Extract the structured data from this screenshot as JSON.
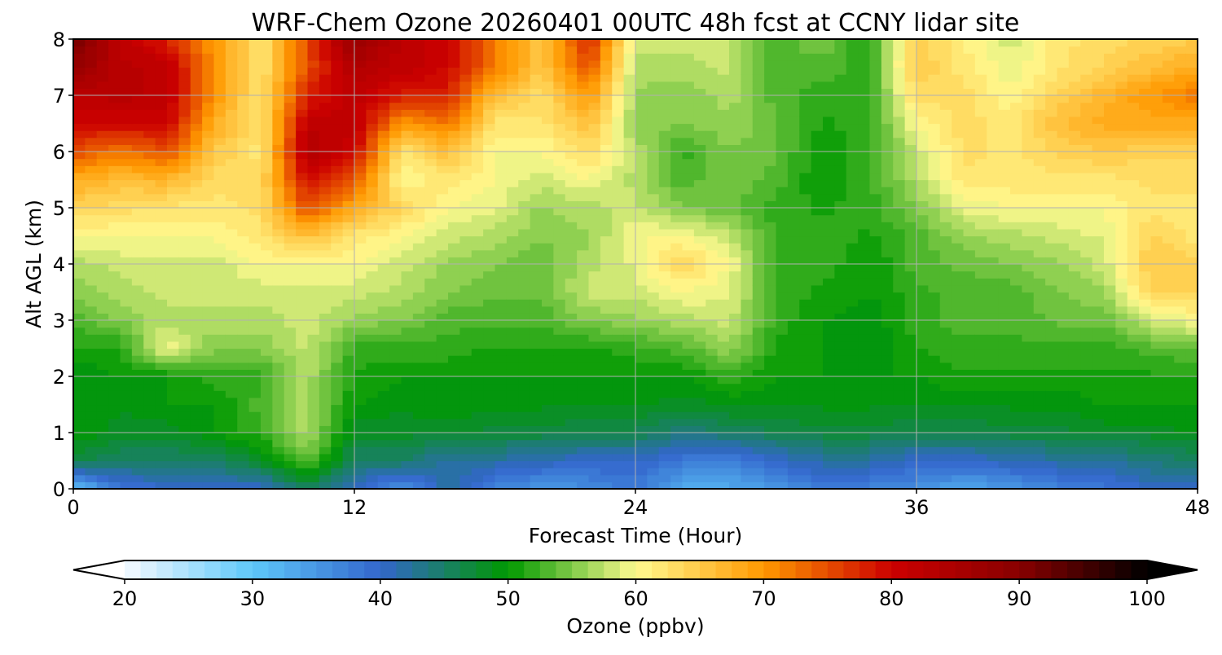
{
  "chart_data": {
    "type": "heatmap",
    "title": "WRF-Chem Ozone  20260401 00UTC 48h fcst at CCNY lidar site",
    "xlabel": "Forecast Time (Hour)",
    "ylabel": "Alt AGL (km)",
    "xlim": [
      0,
      48
    ],
    "ylim": [
      0,
      8
    ],
    "xticks": [
      "0",
      "12",
      "24",
      "36",
      "48"
    ],
    "yticks": [
      "0",
      "1",
      "2",
      "3",
      "4",
      "5",
      "6",
      "7",
      "8"
    ],
    "grid": true,
    "x_hours": [
      0,
      2,
      4,
      6,
      8,
      10,
      12,
      14,
      16,
      18,
      20,
      22,
      24,
      26,
      28,
      30,
      32,
      34,
      36,
      38,
      40,
      42,
      44,
      46,
      48
    ],
    "y_km": [
      0,
      0.5,
      1,
      1.5,
      2,
      2.5,
      3,
      3.5,
      4,
      4.5,
      5,
      5.5,
      6,
      6.5,
      7,
      7.5,
      8
    ],
    "values_by_hour": [
      [
        30,
        47,
        50,
        50,
        49,
        51,
        53,
        55,
        57,
        60,
        64,
        68,
        75,
        80,
        82,
        88,
        92
      ],
      [
        38,
        45,
        48,
        49,
        50,
        51,
        55,
        57,
        58,
        60,
        63,
        66,
        72,
        80,
        83,
        83,
        82
      ],
      [
        40,
        45,
        48,
        50,
        50,
        60,
        57,
        58,
        58,
        60,
        62,
        67,
        75,
        80,
        82,
        82,
        78
      ],
      [
        40,
        45,
        50,
        50,
        52,
        55,
        57,
        58,
        58,
        60,
        62,
        63,
        65,
        68,
        70,
        70,
        70
      ],
      [
        40,
        48,
        52,
        53,
        52,
        55,
        57,
        58,
        60,
        62,
        63,
        63,
        62,
        62,
        62,
        62,
        62
      ],
      [
        45,
        54,
        57,
        57,
        57,
        58,
        58,
        58,
        60,
        66,
        75,
        80,
        84,
        82,
        78,
        75,
        75
      ],
      [
        40,
        45,
        48,
        50,
        51,
        52,
        56,
        58,
        60,
        62,
        68,
        75,
        80,
        82,
        82,
        84,
        88
      ],
      [
        35,
        45,
        48,
        49,
        50,
        52,
        55,
        57,
        58,
        60,
        64,
        60,
        62,
        70,
        78,
        82,
        82
      ],
      [
        42,
        42,
        48,
        50,
        50,
        52,
        53,
        55,
        56,
        58,
        60,
        62,
        66,
        72,
        78,
        80,
        80
      ],
      [
        37,
        42,
        47,
        49,
        50,
        51,
        53,
        54,
        55,
        57,
        59,
        60,
        60,
        62,
        66,
        72,
        72
      ],
      [
        35,
        41,
        47,
        49,
        50,
        51,
        53,
        54,
        54,
        55,
        56,
        58,
        60,
        62,
        63,
        65,
        65
      ],
      [
        36,
        40,
        46,
        49,
        50,
        51,
        55,
        58,
        57,
        56,
        57,
        60,
        63,
        66,
        70,
        75,
        78
      ],
      [
        38,
        40,
        46,
        49,
        50,
        52,
        56,
        58,
        59,
        60,
        58,
        57,
        57,
        56,
        56,
        57,
        58
      ],
      [
        33,
        38,
        44,
        48,
        50,
        53,
        57,
        60,
        64,
        60,
        55,
        53,
        52,
        55,
        55,
        57,
        58
      ],
      [
        33,
        37,
        45,
        49,
        52,
        56,
        58,
        59,
        60,
        58,
        54,
        55,
        55,
        56,
        57,
        58,
        58
      ],
      [
        35,
        40,
        46,
        49,
        50,
        51,
        52,
        52,
        52,
        52,
        52,
        53,
        54,
        54,
        53,
        53,
        53
      ],
      [
        38,
        42,
        47,
        49,
        50,
        50,
        50,
        51,
        52,
        52,
        51,
        50,
        50,
        51,
        52,
        53,
        55
      ],
      [
        37,
        42,
        47,
        49,
        50,
        49,
        49,
        50,
        50,
        51,
        52,
        52,
        52,
        52,
        52,
        52,
        51
      ],
      [
        36,
        40,
        46,
        49,
        50,
        51,
        52,
        52,
        53,
        53,
        55,
        57,
        58,
        60,
        63,
        65,
        65
      ],
      [
        33,
        40,
        46,
        49,
        51,
        52,
        53,
        53,
        54,
        56,
        59,
        62,
        63,
        63,
        63,
        62,
        61
      ],
      [
        35,
        41,
        47,
        49,
        51,
        52,
        53,
        53,
        55,
        57,
        60,
        62,
        62,
        62,
        60,
        59,
        58
      ],
      [
        37,
        42,
        47,
        49,
        51,
        52,
        54,
        55,
        56,
        58,
        60,
        62,
        64,
        66,
        64,
        62,
        62
      ],
      [
        38,
        42,
        48,
        50,
        51,
        52,
        54,
        56,
        58,
        59,
        60,
        62,
        65,
        68,
        67,
        64,
        63
      ],
      [
        40,
        44,
        48,
        50,
        51,
        53,
        58,
        64,
        65,
        64,
        62,
        63,
        64,
        68,
        70,
        66,
        64
      ],
      [
        40,
        45,
        49,
        50,
        51,
        54,
        60,
        64,
        64,
        62,
        62,
        63,
        64,
        68,
        72,
        68,
        65
      ]
    ],
    "colorbar": {
      "label": "Ozone  (ppbv)",
      "range": [
        20,
        100
      ],
      "ticks": [
        "20",
        "30",
        "40",
        "50",
        "60",
        "70",
        "80",
        "90",
        "100"
      ],
      "extend": "both",
      "step": 1.25,
      "color_stops": [
        [
          20,
          "#f5faff"
        ],
        [
          30,
          "#5ec8fa"
        ],
        [
          40,
          "#3366cc"
        ],
        [
          50,
          "#009900"
        ],
        [
          60,
          "#fffa90"
        ],
        [
          70,
          "#ff9900"
        ],
        [
          80,
          "#cc0000"
        ],
        [
          90,
          "#880000"
        ],
        [
          100,
          "#000000"
        ]
      ]
    }
  }
}
